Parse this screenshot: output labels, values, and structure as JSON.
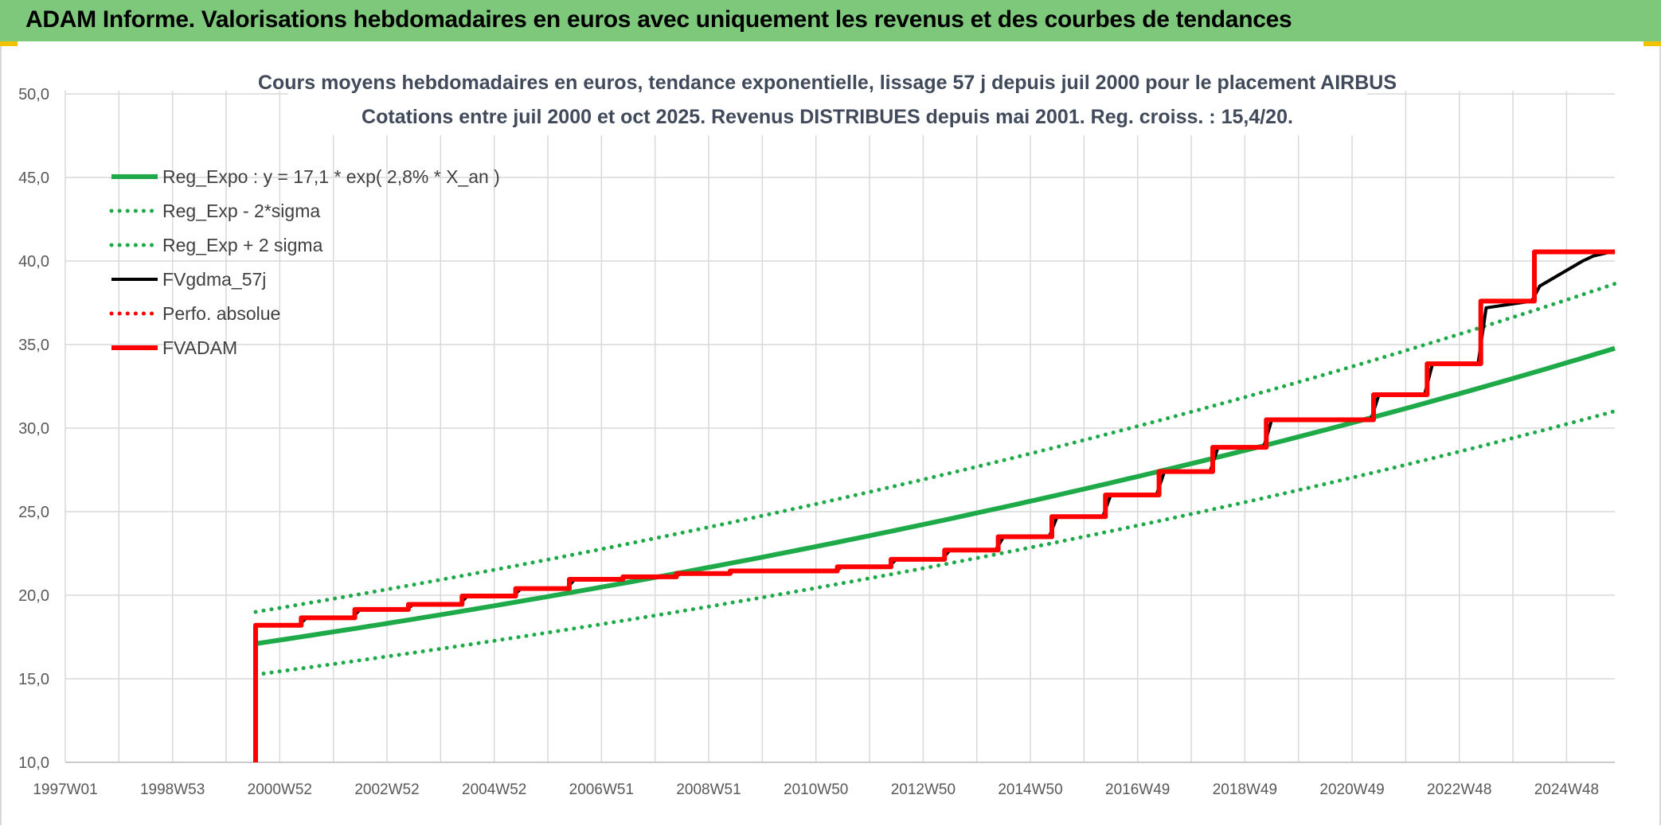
{
  "banner": {
    "title": "ADAM Informe. Valorisations hebdomadaires en euros avec uniquement les revenus et des courbes de tendances"
  },
  "colors": {
    "banner_bg": "#7dc87b",
    "reg_expo": "#1faa4a",
    "fvgdma": "#000000",
    "fvadam": "#ff0000",
    "corner": "#f2c200"
  },
  "chart_data": {
    "type": "line",
    "title_line1": "Cours moyens hebdomadaires en euros, tendance exponentielle, lissage 57 j depuis juil 2000 pour le placement AIRBUS",
    "title_line2": "Cotations entre juil 2000 et oct 2025. Revenus DISTRIBUES depuis mai 2001. Reg. croiss. : 15,4/20.",
    "xlabel": "",
    "ylabel": "",
    "ylim": [
      10,
      50
    ],
    "y_ticks": [
      "10,0",
      "15,0",
      "20,0",
      "25,0",
      "30,0",
      "35,0",
      "40,0",
      "45,0",
      "50,0"
    ],
    "y_tick_values": [
      10,
      15,
      20,
      25,
      30,
      35,
      40,
      45,
      50
    ],
    "xlim": [
      1997.0,
      2025.9
    ],
    "x_ticks": [
      "1997W01",
      "1998W53",
      "2000W52",
      "2002W52",
      "2004W52",
      "2006W51",
      "2008W51",
      "2010W50",
      "2012W50",
      "2014W50",
      "2016W49",
      "2018W49",
      "2020W49",
      "2022W48",
      "2024W48"
    ],
    "x_tick_values": [
      1997.0,
      1999.0,
      2001.0,
      2003.0,
      2005.0,
      2007.0,
      2009.0,
      2011.0,
      2013.0,
      2015.0,
      2017.0,
      2019.0,
      2021.0,
      2023.0,
      2025.0
    ],
    "grid": true,
    "legend_position": "top-left",
    "series": [
      {
        "name": "Reg_Expo : y = 17,1 * exp( 2,8% *  X_an )",
        "style": "solid-thick",
        "color": "#1faa4a",
        "x": [
          2000.55,
          2025.9
        ],
        "formula": {
          "a": 17.1,
          "rate": 0.028,
          "x0": 2000.55
        }
      },
      {
        "name": "Reg_Exp - 2*sigma",
        "style": "dotted",
        "color": "#1faa4a",
        "x": [
          2000.55,
          2025.9
        ],
        "formula": {
          "a": 15.25,
          "rate": 0.028,
          "x0": 2000.55
        }
      },
      {
        "name": "Reg_Exp + 2 sigma",
        "style": "dotted",
        "color": "#1faa4a",
        "x": [
          2000.55,
          2025.9
        ],
        "formula": {
          "a": 19.0,
          "rate": 0.028,
          "x0": 2000.55
        }
      },
      {
        "name": "FVgdma_57j",
        "style": "solid",
        "color": "#000000",
        "x": [
          2000.55,
          2001.35,
          2001.5,
          2002.35,
          2002.5,
          2003.35,
          2003.5,
          2004.35,
          2004.5,
          2005.35,
          2005.5,
          2006.35,
          2006.5,
          2007.35,
          2007.5,
          2008.35,
          2008.5,
          2009.35,
          2009.5,
          2010.35,
          2010.5,
          2011.35,
          2011.5,
          2012.35,
          2012.5,
          2013.35,
          2013.5,
          2014.35,
          2014.5,
          2015.35,
          2015.5,
          2016.35,
          2016.5,
          2017.35,
          2017.5,
          2018.35,
          2018.5,
          2019.35,
          2019.5,
          2021.35,
          2021.5,
          2022.35,
          2022.5,
          2023.35,
          2023.5,
          2024.35,
          2024.5,
          2025.3,
          2025.5,
          2025.9
        ],
        "y": [
          18.2,
          18.2,
          18.65,
          18.65,
          19.15,
          19.15,
          19.45,
          19.45,
          19.95,
          19.95,
          20.4,
          20.4,
          20.95,
          20.95,
          21.1,
          21.1,
          21.3,
          21.3,
          21.45,
          21.45,
          21.45,
          21.45,
          21.7,
          21.7,
          22.15,
          22.15,
          22.7,
          22.7,
          23.5,
          23.5,
          24.7,
          24.7,
          26.0,
          26.0,
          27.4,
          27.4,
          28.85,
          28.85,
          30.5,
          30.5,
          32.0,
          32.0,
          33.85,
          33.85,
          37.2,
          37.6,
          38.5,
          40.0,
          40.3,
          40.6
        ]
      },
      {
        "name": "Perfo. absolue",
        "style": "dotted",
        "color": "#ff0000",
        "x": [],
        "y": []
      },
      {
        "name": "FVADAM",
        "style": "solid-thick",
        "color": "#ff0000",
        "x": [
          2000.55,
          2000.55,
          2001.4,
          2001.4,
          2002.4,
          2002.4,
          2003.4,
          2003.4,
          2004.4,
          2004.4,
          2005.4,
          2005.4,
          2006.4,
          2006.4,
          2007.4,
          2007.4,
          2008.4,
          2008.4,
          2009.4,
          2009.4,
          2010.4,
          2010.4,
          2011.4,
          2011.4,
          2012.4,
          2012.4,
          2013.4,
          2013.4,
          2014.4,
          2014.4,
          2015.4,
          2015.4,
          2016.4,
          2016.4,
          2017.4,
          2017.4,
          2018.4,
          2018.4,
          2019.4,
          2019.4,
          2021.4,
          2021.4,
          2022.4,
          2022.4,
          2023.4,
          2023.4,
          2024.4,
          2024.4,
          2025.4,
          2025.4,
          2025.9
        ],
        "y": [
          10.0,
          18.2,
          18.2,
          18.65,
          18.65,
          19.15,
          19.15,
          19.45,
          19.45,
          19.95,
          19.95,
          20.4,
          20.4,
          20.95,
          20.95,
          21.1,
          21.1,
          21.3,
          21.3,
          21.45,
          21.45,
          21.45,
          21.45,
          21.7,
          21.7,
          22.15,
          22.15,
          22.7,
          22.7,
          23.5,
          23.5,
          24.7,
          24.7,
          26.0,
          26.0,
          27.4,
          27.4,
          28.85,
          28.85,
          30.5,
          30.5,
          32.0,
          32.0,
          33.85,
          33.85,
          37.6,
          37.6,
          40.55,
          40.55,
          40.55,
          40.55
        ]
      }
    ]
  }
}
